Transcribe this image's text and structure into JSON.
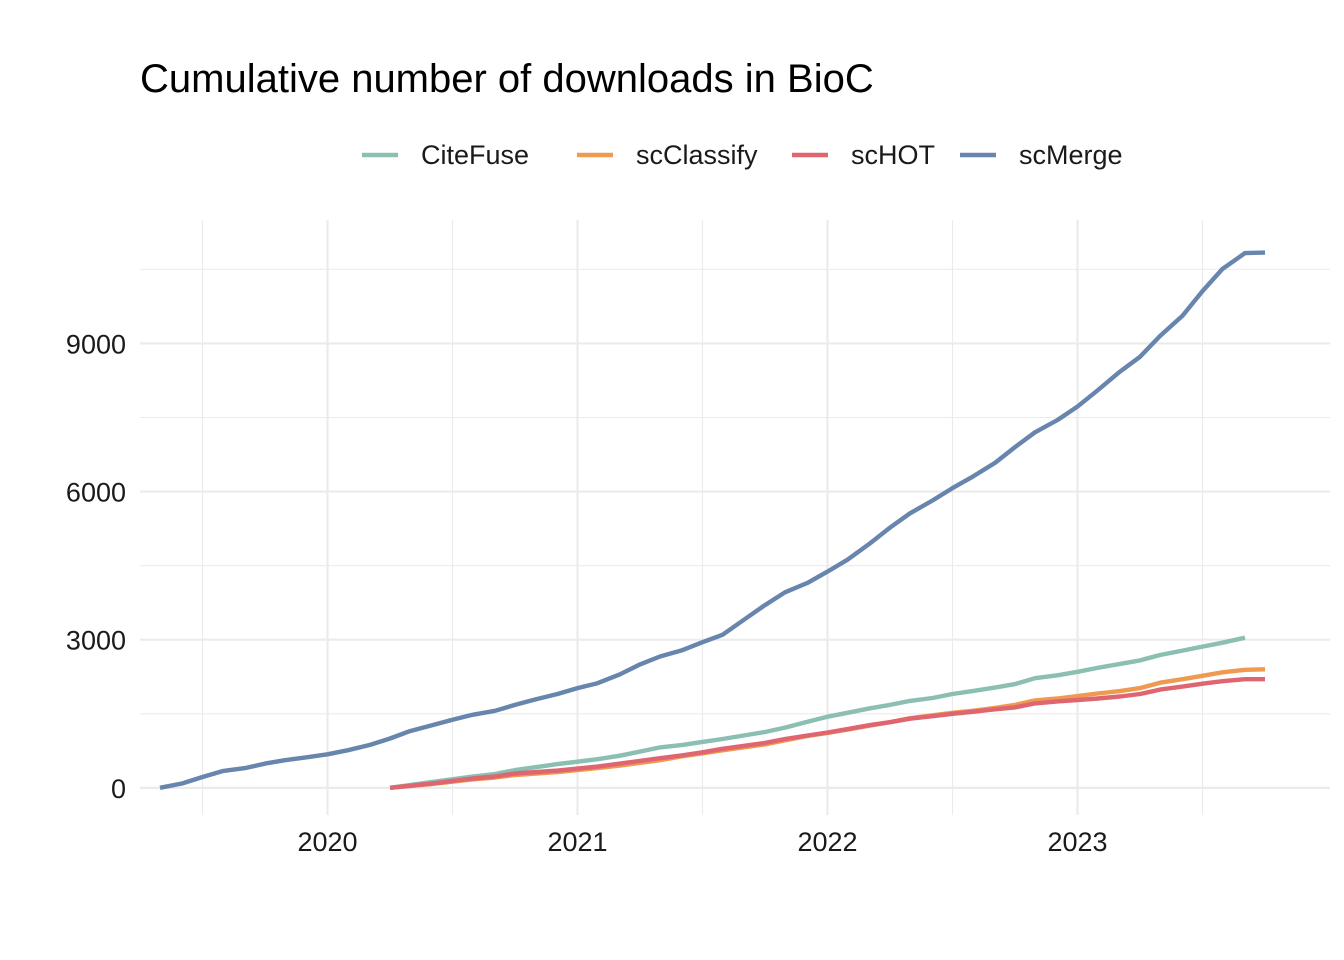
{
  "chart_data": {
    "type": "line",
    "title": "Cumulative number of downloads in BioC",
    "xlabel": "",
    "ylabel": "",
    "x_ticks": [
      "2020",
      "2021",
      "2022",
      "2023"
    ],
    "x_tick_values": [
      2020.0,
      2021.0,
      2022.0,
      2023.0
    ],
    "y_ticks": [
      "0",
      "3000",
      "6000",
      "9000"
    ],
    "y_tick_values": [
      0,
      3000,
      6000,
      9000
    ],
    "xlim": [
      2019.25,
      2024.01
    ],
    "ylim": [
      -550,
      11500
    ],
    "grid": true,
    "legend_position": "top",
    "series": [
      {
        "name": "CiteFuse",
        "color": "#8ABFB2",
        "points": [
          [
            2020.25,
            0
          ],
          [
            2020.42,
            120
          ],
          [
            2020.58,
            230
          ],
          [
            2020.67,
            280
          ],
          [
            2020.75,
            360
          ],
          [
            2020.92,
            480
          ],
          [
            2021.0,
            530
          ],
          [
            2021.08,
            580
          ],
          [
            2021.17,
            650
          ],
          [
            2021.33,
            820
          ],
          [
            2021.42,
            870
          ],
          [
            2021.5,
            930
          ],
          [
            2021.58,
            990
          ],
          [
            2021.75,
            1130
          ],
          [
            2021.83,
            1220
          ],
          [
            2021.92,
            1340
          ],
          [
            2022.0,
            1440
          ],
          [
            2022.08,
            1520
          ],
          [
            2022.17,
            1610
          ],
          [
            2022.25,
            1680
          ],
          [
            2022.33,
            1760
          ],
          [
            2022.42,
            1820
          ],
          [
            2022.5,
            1900
          ],
          [
            2022.58,
            1960
          ],
          [
            2022.67,
            2030
          ],
          [
            2022.75,
            2100
          ],
          [
            2022.83,
            2220
          ],
          [
            2022.92,
            2280
          ],
          [
            2023.0,
            2350
          ],
          [
            2023.08,
            2430
          ],
          [
            2023.17,
            2510
          ],
          [
            2023.25,
            2580
          ],
          [
            2023.33,
            2690
          ],
          [
            2023.42,
            2780
          ],
          [
            2023.5,
            2860
          ],
          [
            2023.58,
            2940
          ],
          [
            2023.67,
            3040
          ]
        ]
      },
      {
        "name": "scClassify",
        "color": "#EE9A50",
        "points": [
          [
            2020.25,
            0
          ],
          [
            2020.42,
            80
          ],
          [
            2020.58,
            170
          ],
          [
            2020.67,
            210
          ],
          [
            2020.75,
            260
          ],
          [
            2020.92,
            320
          ],
          [
            2021.0,
            360
          ],
          [
            2021.08,
            400
          ],
          [
            2021.17,
            450
          ],
          [
            2021.33,
            560
          ],
          [
            2021.42,
            640
          ],
          [
            2021.5,
            700
          ],
          [
            2021.58,
            760
          ],
          [
            2021.75,
            880
          ],
          [
            2021.83,
            960
          ],
          [
            2021.92,
            1050
          ],
          [
            2022.0,
            1110
          ],
          [
            2022.08,
            1180
          ],
          [
            2022.17,
            1260
          ],
          [
            2022.25,
            1330
          ],
          [
            2022.33,
            1410
          ],
          [
            2022.42,
            1470
          ],
          [
            2022.5,
            1520
          ],
          [
            2022.58,
            1560
          ],
          [
            2022.67,
            1620
          ],
          [
            2022.75,
            1680
          ],
          [
            2022.83,
            1770
          ],
          [
            2022.92,
            1810
          ],
          [
            2023.0,
            1860
          ],
          [
            2023.08,
            1910
          ],
          [
            2023.17,
            1960
          ],
          [
            2023.25,
            2020
          ],
          [
            2023.33,
            2130
          ],
          [
            2023.42,
            2200
          ],
          [
            2023.5,
            2270
          ],
          [
            2023.58,
            2340
          ],
          [
            2023.67,
            2390
          ],
          [
            2023.75,
            2400
          ]
        ]
      },
      {
        "name": "scHOT",
        "color": "#DF6570",
        "points": [
          [
            2020.25,
            0
          ],
          [
            2020.42,
            90
          ],
          [
            2020.58,
            190
          ],
          [
            2020.67,
            230
          ],
          [
            2020.75,
            290
          ],
          [
            2020.92,
            350
          ],
          [
            2021.0,
            390
          ],
          [
            2021.08,
            430
          ],
          [
            2021.17,
            490
          ],
          [
            2021.33,
            600
          ],
          [
            2021.42,
            660
          ],
          [
            2021.5,
            720
          ],
          [
            2021.58,
            790
          ],
          [
            2021.75,
            910
          ],
          [
            2021.83,
            990
          ],
          [
            2021.92,
            1060
          ],
          [
            2022.0,
            1120
          ],
          [
            2022.08,
            1190
          ],
          [
            2022.17,
            1270
          ],
          [
            2022.25,
            1330
          ],
          [
            2022.33,
            1400
          ],
          [
            2022.42,
            1450
          ],
          [
            2022.5,
            1500
          ],
          [
            2022.58,
            1540
          ],
          [
            2022.67,
            1590
          ],
          [
            2022.75,
            1630
          ],
          [
            2022.83,
            1710
          ],
          [
            2022.92,
            1750
          ],
          [
            2023.0,
            1780
          ],
          [
            2023.08,
            1810
          ],
          [
            2023.17,
            1850
          ],
          [
            2023.25,
            1900
          ],
          [
            2023.33,
            1990
          ],
          [
            2023.42,
            2050
          ],
          [
            2023.5,
            2110
          ],
          [
            2023.58,
            2160
          ],
          [
            2023.67,
            2200
          ],
          [
            2023.75,
            2200
          ]
        ]
      },
      {
        "name": "scMerge",
        "color": "#6885AE",
        "points": [
          [
            2019.33,
            0
          ],
          [
            2019.42,
            90
          ],
          [
            2019.5,
            220
          ],
          [
            2019.58,
            340
          ],
          [
            2019.67,
            400
          ],
          [
            2019.75,
            490
          ],
          [
            2019.83,
            560
          ],
          [
            2019.92,
            620
          ],
          [
            2020.0,
            680
          ],
          [
            2020.08,
            760
          ],
          [
            2020.17,
            870
          ],
          [
            2020.25,
            1000
          ],
          [
            2020.33,
            1150
          ],
          [
            2020.42,
            1270
          ],
          [
            2020.5,
            1380
          ],
          [
            2020.58,
            1480
          ],
          [
            2020.67,
            1560
          ],
          [
            2020.75,
            1680
          ],
          [
            2020.83,
            1790
          ],
          [
            2020.92,
            1900
          ],
          [
            2021.0,
            2020
          ],
          [
            2021.08,
            2120
          ],
          [
            2021.17,
            2300
          ],
          [
            2021.25,
            2500
          ],
          [
            2021.33,
            2660
          ],
          [
            2021.42,
            2790
          ],
          [
            2021.5,
            2950
          ],
          [
            2021.58,
            3100
          ],
          [
            2021.67,
            3420
          ],
          [
            2021.75,
            3700
          ],
          [
            2021.83,
            3960
          ],
          [
            2021.92,
            4150
          ],
          [
            2022.0,
            4380
          ],
          [
            2022.08,
            4620
          ],
          [
            2022.17,
            4950
          ],
          [
            2022.25,
            5270
          ],
          [
            2022.33,
            5560
          ],
          [
            2022.42,
            5820
          ],
          [
            2022.5,
            6070
          ],
          [
            2022.58,
            6300
          ],
          [
            2022.67,
            6580
          ],
          [
            2022.75,
            6900
          ],
          [
            2022.83,
            7200
          ],
          [
            2022.92,
            7450
          ],
          [
            2023.0,
            7720
          ],
          [
            2023.08,
            8050
          ],
          [
            2023.17,
            8430
          ],
          [
            2023.25,
            8730
          ],
          [
            2023.33,
            9150
          ],
          [
            2023.42,
            9560
          ],
          [
            2023.5,
            10060
          ],
          [
            2023.58,
            10510
          ],
          [
            2023.67,
            10830
          ],
          [
            2023.75,
            10840
          ]
        ]
      }
    ]
  }
}
